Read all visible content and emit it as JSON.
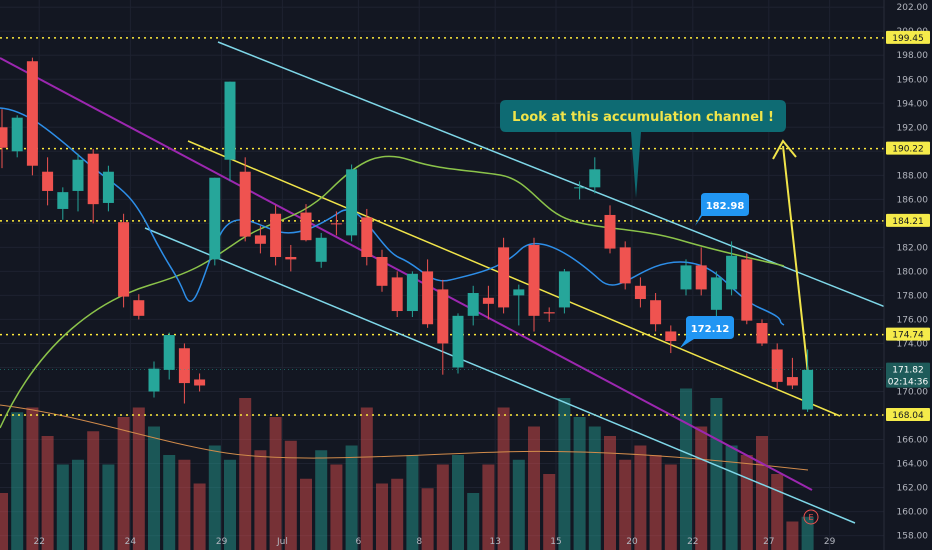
{
  "chart_data": {
    "type": "candlestick",
    "y_axis": {
      "ticks": [
        "202.00",
        "200.00",
        "198.00",
        "196.00",
        "194.00",
        "192.00",
        "190.00",
        "188.00",
        "186.00",
        "184.00",
        "182.00",
        "180.00",
        "178.00",
        "176.00",
        "174.00",
        "172.00",
        "170.00",
        "168.00",
        "166.00",
        "164.00",
        "162.00",
        "160.00",
        "158.00"
      ],
      "range": [
        156.8,
        202.6
      ],
      "position": "right"
    },
    "x_axis": {
      "ticks": [
        "22",
        "24",
        "29",
        "Jul",
        "6",
        "8",
        "13",
        "15",
        "20",
        "22",
        "27",
        "29"
      ]
    },
    "candles": [
      {
        "o": 192.0,
        "h": 193.5,
        "l": 188.6,
        "c": 190.3,
        "dir": "down"
      },
      {
        "o": 190.0,
        "h": 193.0,
        "l": 189.5,
        "c": 192.8,
        "dir": "up"
      },
      {
        "o": 197.5,
        "h": 197.8,
        "l": 188.0,
        "c": 188.8,
        "dir": "down"
      },
      {
        "o": 188.3,
        "h": 189.5,
        "l": 185.5,
        "c": 186.7,
        "dir": "down"
      },
      {
        "o": 185.2,
        "h": 187.0,
        "l": 184.3,
        "c": 186.6,
        "dir": "up"
      },
      {
        "o": 186.7,
        "h": 189.8,
        "l": 185.0,
        "c": 189.3,
        "dir": "up"
      },
      {
        "o": 189.8,
        "h": 190.2,
        "l": 184.0,
        "c": 185.6,
        "dir": "down"
      },
      {
        "o": 185.7,
        "h": 188.8,
        "l": 185.0,
        "c": 188.3,
        "dir": "up"
      },
      {
        "o": 184.1,
        "h": 184.8,
        "l": 177.0,
        "c": 177.9,
        "dir": "down"
      },
      {
        "o": 177.6,
        "h": 178.1,
        "l": 176.0,
        "c": 176.3,
        "dir": "down"
      },
      {
        "o": 170.0,
        "h": 172.5,
        "l": 169.5,
        "c": 171.9,
        "dir": "up"
      },
      {
        "o": 171.8,
        "h": 174.9,
        "l": 171.0,
        "c": 174.7,
        "dir": "up"
      },
      {
        "o": 173.6,
        "h": 174.0,
        "l": 169.0,
        "c": 170.7,
        "dir": "down"
      },
      {
        "o": 171.0,
        "h": 171.5,
        "l": 170.0,
        "c": 170.5,
        "dir": "down"
      },
      {
        "o": 181.0,
        "h": 187.8,
        "l": 180.5,
        "c": 187.8,
        "dir": "up"
      },
      {
        "o": 189.3,
        "h": 195.8,
        "l": 187.5,
        "c": 195.8,
        "dir": "up"
      },
      {
        "o": 188.3,
        "h": 189.5,
        "l": 182.5,
        "c": 182.9,
        "dir": "down"
      },
      {
        "o": 183.0,
        "h": 183.8,
        "l": 181.5,
        "c": 182.3,
        "dir": "down"
      },
      {
        "o": 184.8,
        "h": 185.5,
        "l": 180.5,
        "c": 181.2,
        "dir": "down"
      },
      {
        "o": 181.2,
        "h": 182.2,
        "l": 180.0,
        "c": 181.0,
        "dir": "down"
      },
      {
        "o": 184.9,
        "h": 185.6,
        "l": 182.5,
        "c": 182.6,
        "dir": "down"
      },
      {
        "o": 180.8,
        "h": 183.2,
        "l": 180.3,
        "c": 182.8,
        "dir": "up"
      },
      {
        "o": 184.0,
        "h": 185.0,
        "l": 183.0,
        "c": 184.0,
        "dir": "down"
      },
      {
        "o": 183.0,
        "h": 188.9,
        "l": 182.5,
        "c": 188.5,
        "dir": "up"
      },
      {
        "o": 184.5,
        "h": 185.2,
        "l": 180.5,
        "c": 181.2,
        "dir": "down"
      },
      {
        "o": 181.2,
        "h": 181.8,
        "l": 178.3,
        "c": 178.8,
        "dir": "down"
      },
      {
        "o": 179.5,
        "h": 180.0,
        "l": 176.2,
        "c": 176.7,
        "dir": "down"
      },
      {
        "o": 176.7,
        "h": 180.0,
        "l": 176.2,
        "c": 179.8,
        "dir": "up"
      },
      {
        "o": 180.0,
        "h": 181.0,
        "l": 175.3,
        "c": 175.6,
        "dir": "down"
      },
      {
        "o": 178.5,
        "h": 179.3,
        "l": 171.4,
        "c": 174.0,
        "dir": "down"
      },
      {
        "o": 172.0,
        "h": 176.5,
        "l": 171.5,
        "c": 176.3,
        "dir": "up"
      },
      {
        "o": 176.3,
        "h": 178.8,
        "l": 175.5,
        "c": 178.2,
        "dir": "up"
      },
      {
        "o": 177.3,
        "h": 178.8,
        "l": 176.0,
        "c": 177.8,
        "dir": "down"
      },
      {
        "o": 182.0,
        "h": 182.8,
        "l": 176.5,
        "c": 177.0,
        "dir": "down"
      },
      {
        "o": 178.0,
        "h": 178.9,
        "l": 175.5,
        "c": 178.5,
        "dir": "up"
      },
      {
        "o": 182.2,
        "h": 182.8,
        "l": 175.0,
        "c": 176.3,
        "dir": "down"
      },
      {
        "o": 176.6,
        "h": 177.0,
        "l": 175.8,
        "c": 176.5,
        "dir": "down"
      },
      {
        "o": 177.0,
        "h": 180.2,
        "l": 176.5,
        "c": 180.0,
        "dir": "up"
      },
      {
        "o": 187.0,
        "h": 187.5,
        "l": 186.0,
        "c": 187.0,
        "dir": "up"
      },
      {
        "o": 187.0,
        "h": 189.5,
        "l": 186.5,
        "c": 188.5,
        "dir": "up"
      },
      {
        "o": 184.7,
        "h": 185.5,
        "l": 181.5,
        "c": 181.9,
        "dir": "down"
      },
      {
        "o": 182.0,
        "h": 182.5,
        "l": 178.5,
        "c": 179.0,
        "dir": "down"
      },
      {
        "o": 178.8,
        "h": 179.5,
        "l": 177.0,
        "c": 177.7,
        "dir": "down"
      },
      {
        "o": 177.6,
        "h": 178.2,
        "l": 175.0,
        "c": 175.6,
        "dir": "down"
      },
      {
        "o": 175.0,
        "h": 175.5,
        "l": 173.2,
        "c": 174.2,
        "dir": "down"
      },
      {
        "o": 178.5,
        "h": 181.0,
        "l": 178.0,
        "c": 180.5,
        "dir": "up"
      },
      {
        "o": 180.5,
        "h": 182.0,
        "l": 178.0,
        "c": 178.5,
        "dir": "down"
      },
      {
        "o": 176.8,
        "h": 180.0,
        "l": 176.0,
        "c": 179.5,
        "dir": "up"
      },
      {
        "o": 178.5,
        "h": 182.5,
        "l": 178.0,
        "c": 181.3,
        "dir": "up"
      },
      {
        "o": 181.0,
        "h": 181.5,
        "l": 175.6,
        "c": 175.9,
        "dir": "down"
      },
      {
        "o": 175.7,
        "h": 176.0,
        "l": 173.8,
        "c": 174.0,
        "dir": "down"
      },
      {
        "o": 173.5,
        "h": 174.0,
        "l": 170.2,
        "c": 170.8,
        "dir": "down"
      },
      {
        "o": 171.2,
        "h": 172.8,
        "l": 170.2,
        "c": 170.5,
        "dir": "down"
      },
      {
        "o": 168.5,
        "h": 173.5,
        "l": 168.3,
        "c": 171.8,
        "dir": "up"
      }
    ],
    "price_levels": [
      "199.45",
      "190.22",
      "184.21",
      "174.74",
      "168.04"
    ],
    "current_price": "171.82",
    "countdown": "02:14:36",
    "annotations": {
      "callout_main": "Look at this accumulation channel !",
      "label_high": "182.98",
      "label_low": "172.12"
    },
    "event_marker": "E",
    "colors": {
      "background": "#131722",
      "up": "#26a69a",
      "down": "#ef5350",
      "level_line": "#ffeb3b",
      "channel_blue": "#7fd7e8",
      "channel_yellow": "#f0e44a",
      "trend_purple": "#9c27b0",
      "sma_blue": "#2d8ee8",
      "sma_green": "#8bc34a",
      "vol_ma": "#d18b4b",
      "callout_bg": "#0e6b73",
      "label_bg": "#2196f3"
    },
    "grid": true,
    "legend": "none"
  }
}
